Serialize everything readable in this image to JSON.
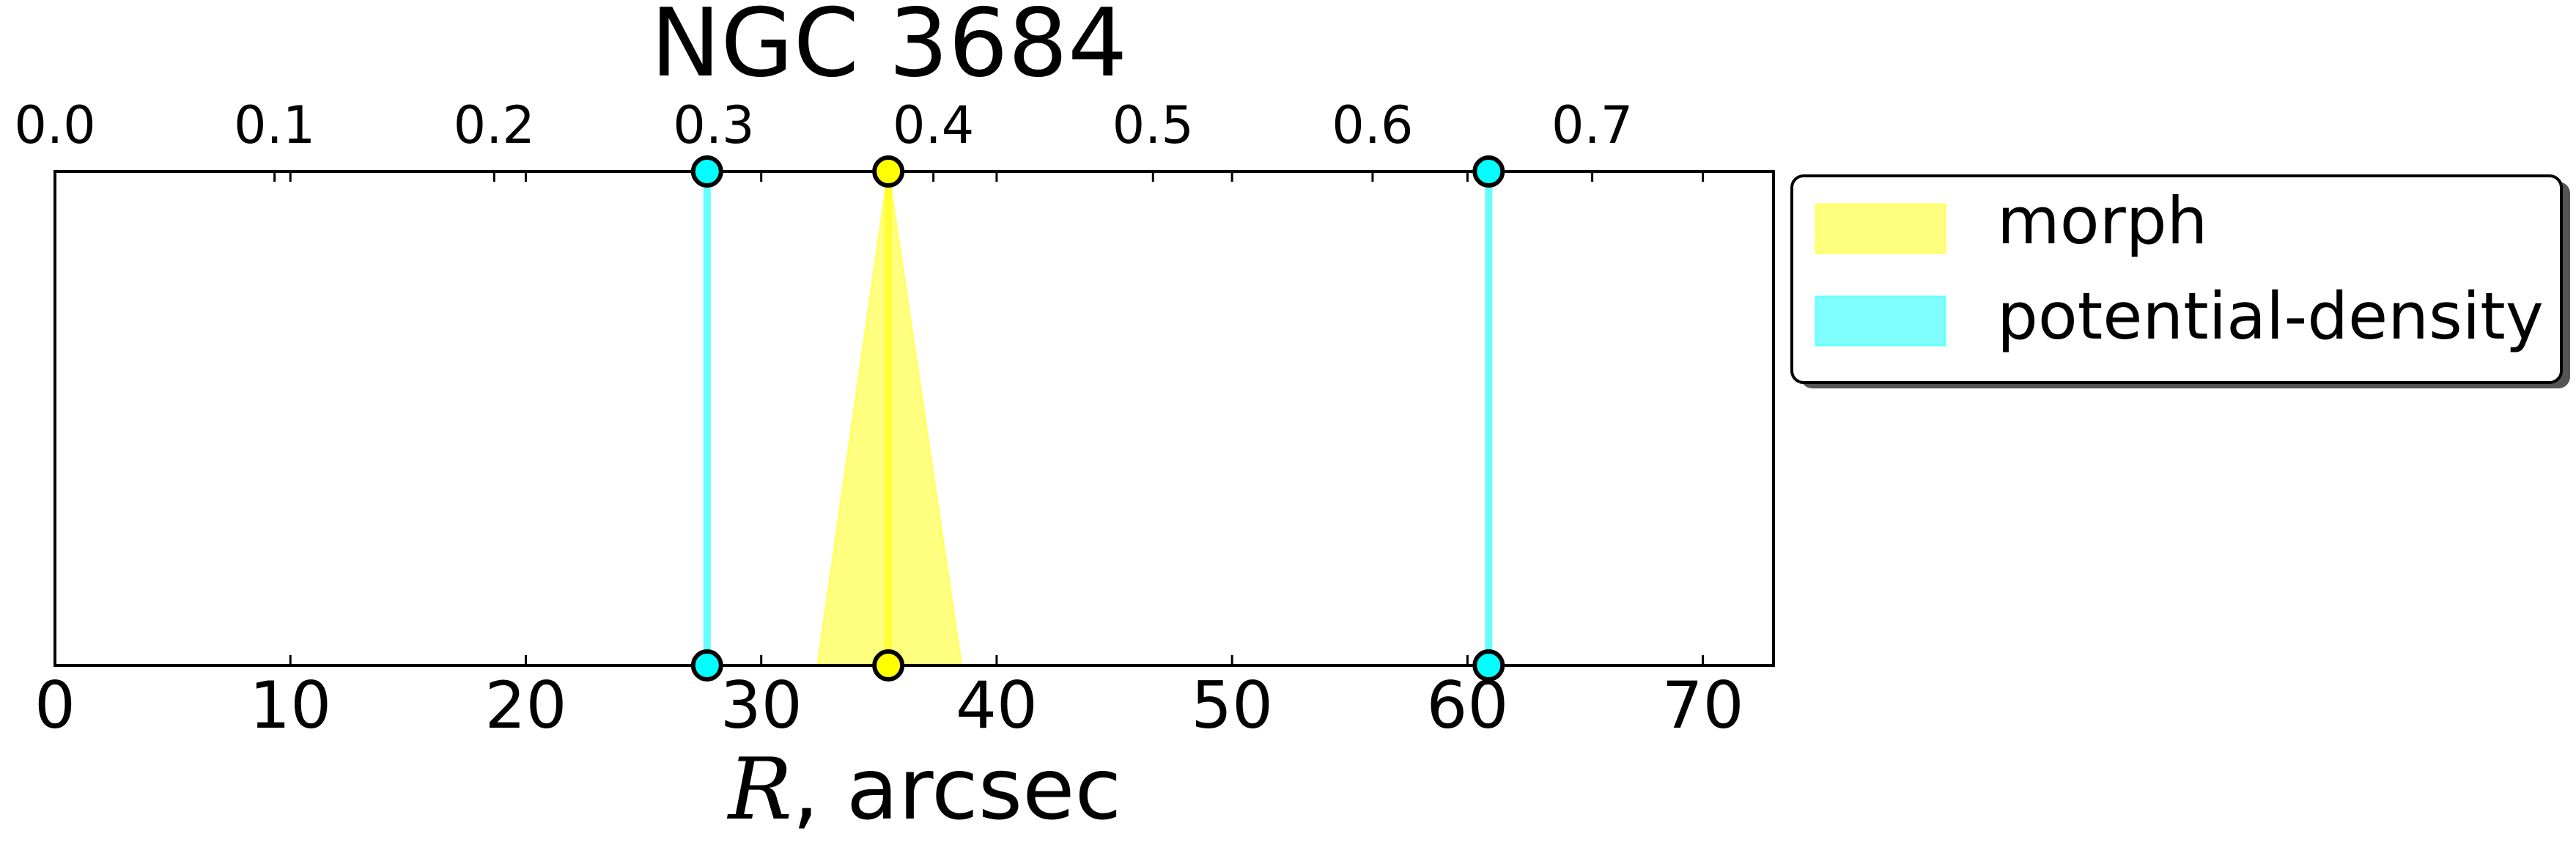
{
  "chart_data": {
    "type": "line",
    "title": "NGC 3684",
    "xlabel_italic": "R",
    "xlabel_rest": ", arcsec",
    "xlim": [
      0,
      73
    ],
    "xticks": [
      0,
      10,
      20,
      30,
      40,
      50,
      60,
      70
    ],
    "xtick_labels": [
      "0",
      "10",
      "20",
      "30",
      "40",
      "50",
      "60",
      "70"
    ],
    "top_axis": {
      "ticks": [
        0.0,
        0.1,
        0.2,
        0.3,
        0.4,
        0.5,
        0.6,
        0.7
      ],
      "tick_labels": [
        "0.0",
        "0.1",
        "0.2",
        "0.3",
        "0.4",
        "0.5",
        "0.6",
        "0.7"
      ],
      "scale_per_arcsec": 0.01072
    },
    "ylim": [
      0,
      1
    ],
    "series": [
      {
        "name": "morph",
        "color": "#ffff00",
        "edge_color": "#ffff66",
        "fill_alpha": 0.5,
        "lines": [
          35.4
        ],
        "bands": [
          {
            "center": 35.4,
            "bottom_left": 32.4,
            "bottom_right": 38.5
          }
        ]
      },
      {
        "name": "potential-density",
        "color": "#00ffff",
        "edge_color": "#66ffff",
        "fill_alpha": 0.5,
        "lines": [
          27.7,
          60.9
        ],
        "bands": []
      }
    ],
    "legend": {
      "position": "outside-right",
      "entries": [
        "morph",
        "potential-density"
      ]
    }
  }
}
